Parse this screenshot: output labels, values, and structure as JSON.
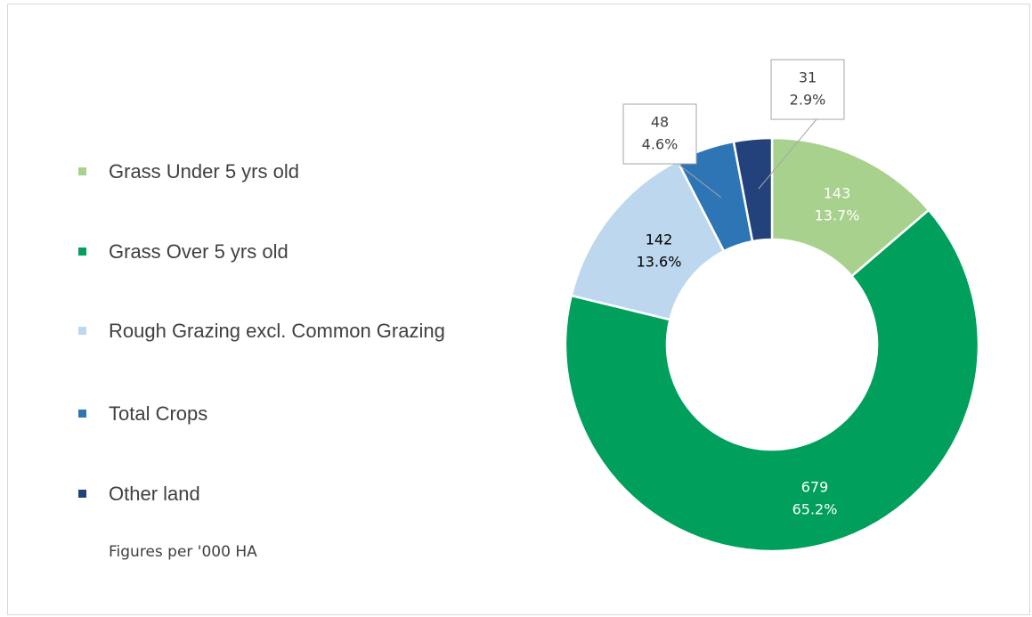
{
  "chart_data": {
    "type": "donut",
    "categories": [
      "Grass Under 5 yrs old",
      "Grass Over 5 yrs old",
      "Rough Grazing excl. Common Grazing",
      "Total Crops",
      "Other land"
    ],
    "values": [
      143,
      679,
      142,
      48,
      31
    ],
    "percent_labels": [
      "13.7%",
      "65.2%",
      "13.6%",
      "4.6%",
      "2.9%"
    ],
    "colors": [
      "#a9d18e",
      "#00a05c",
      "#bdd7ee",
      "#2e75b6",
      "#23417a"
    ],
    "legend": "left",
    "note": "Figures per '000 HA"
  }
}
